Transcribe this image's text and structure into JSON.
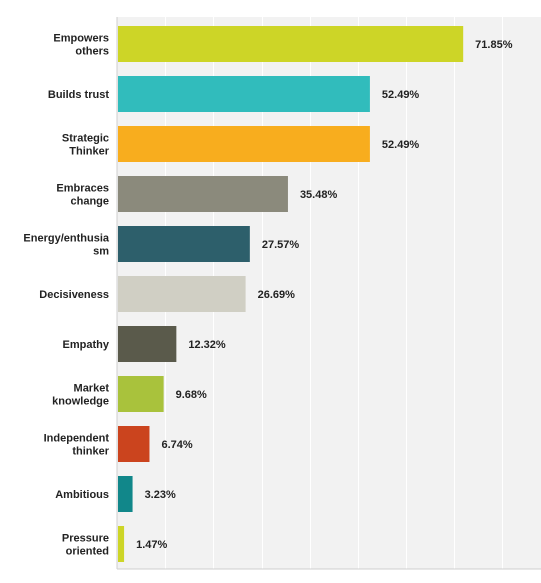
{
  "chart_data": {
    "type": "bar",
    "orientation": "horizontal",
    "categories": [
      [
        "Empowers",
        "others"
      ],
      [
        "Builds trust"
      ],
      [
        "Strategic",
        "Thinker"
      ],
      [
        "Embraces",
        "change"
      ],
      [
        "Energy/enthusia",
        "sm"
      ],
      [
        "Decisiveness"
      ],
      [
        "Empathy"
      ],
      [
        "Market",
        "knowledge"
      ],
      [
        "Independent",
        "thinker"
      ],
      [
        "Ambitious"
      ],
      [
        "Pressure",
        "oriented"
      ]
    ],
    "values": [
      71.85,
      52.49,
      52.49,
      35.48,
      27.57,
      26.69,
      12.32,
      9.68,
      6.74,
      3.23,
      1.47
    ],
    "value_labels": [
      "71.85%",
      "52.49%",
      "52.49%",
      "35.48%",
      "27.57%",
      "26.69%",
      "12.32%",
      "9.68%",
      "6.74%",
      "3.23%",
      "1.47%"
    ],
    "colors": [
      "#cdd527",
      "#31bcbc",
      "#f8ad1e",
      "#8b8a7c",
      "#2d5f6b",
      "#d0cfc4",
      "#5a5a4b",
      "#a9c23c",
      "#cb441e",
      "#11878a",
      "#cdd527"
    ],
    "xlim": [
      0,
      88
    ],
    "gridline_step": 10,
    "grid": true,
    "plot_background": "#f2f2f2",
    "gridline_color": "#ffffff",
    "title": "",
    "xlabel": "",
    "ylabel": ""
  }
}
